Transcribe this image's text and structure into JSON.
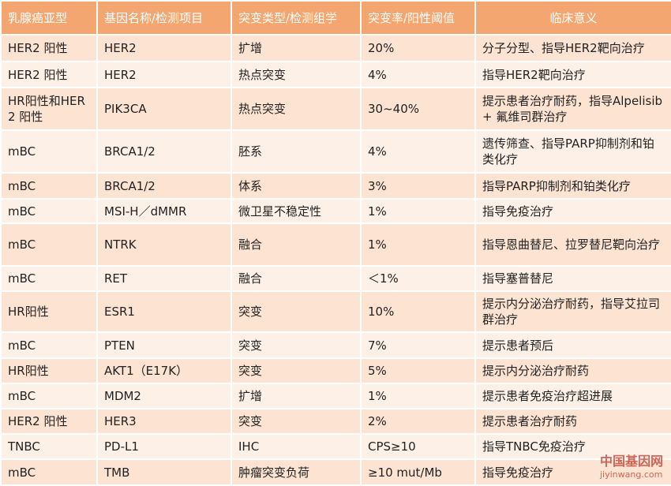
{
  "table": {
    "header": [
      "乳腺癌亚型",
      "基因名称/检测项目",
      "突变类型/检测组学",
      "突变率/阳性阈值",
      "临床意义"
    ],
    "rows": [
      [
        "HER2 阳性",
        "HER2",
        "扩增",
        "20%",
        "分子分型、指导HER2靶向治疗"
      ],
      [
        "HER2 阳性",
        "HER2",
        "热点突变",
        "4%",
        "指导HER2靶向治疗"
      ],
      [
        "HR阳性和HER2 阳性",
        "PIK3CA",
        "热点突变",
        "30~40%",
        "提示患者治疗耐药，指导Alpelisib + 氟维司群治疗"
      ],
      [
        "mBC",
        "BRCA1/2",
        "胚系",
        "4%",
        "遗传筛查、指导PARP抑制剂和铂类化疗"
      ],
      [
        "mBC",
        "BRCA1/2",
        "体系",
        "3%",
        "指导PARP抑制剂和铂类化疗"
      ],
      [
        "mBC",
        "MSI-H／dMMR",
        "微卫星不稳定性",
        "1%",
        "指导免疫治疗"
      ],
      [
        "mBC",
        "NTRK",
        "融合",
        "1%",
        "指导恩曲替尼、拉罗替尼靶向治疗"
      ],
      [
        "mBC",
        "RET",
        "融合",
        "＜1%",
        "指导塞普替尼"
      ],
      [
        "HR阳性",
        "ESR1",
        "突变",
        "10%",
        "提示内分泌治疗耐药，指导艾拉司群治疗"
      ],
      [
        "mBC",
        "PTEN",
        "突变",
        "7%",
        "提示患者预后"
      ],
      [
        "HR阳性",
        "AKT1（E17K）",
        "突变",
        "5%",
        "提示内分泌治疗耐药"
      ],
      [
        "mBC",
        "MDM2",
        "扩增",
        "1%",
        "提示患者免疫治疗超进展"
      ],
      [
        "HER2 阳性",
        "HER3",
        "突变",
        "2%",
        "提示患者治疗耐药"
      ],
      [
        "TNBC",
        "PD-L1",
        "IHC",
        "CPS≥10",
        "指导TNBC免疫治疗"
      ],
      [
        "mBC",
        "TMB",
        "肿瘤突变负荷",
        "≥10 mut/Mb",
        "指导免疫治疗"
      ]
    ]
  },
  "watermark": {
    "title": "中国基因网",
    "url": "jiyinwang.com"
  }
}
